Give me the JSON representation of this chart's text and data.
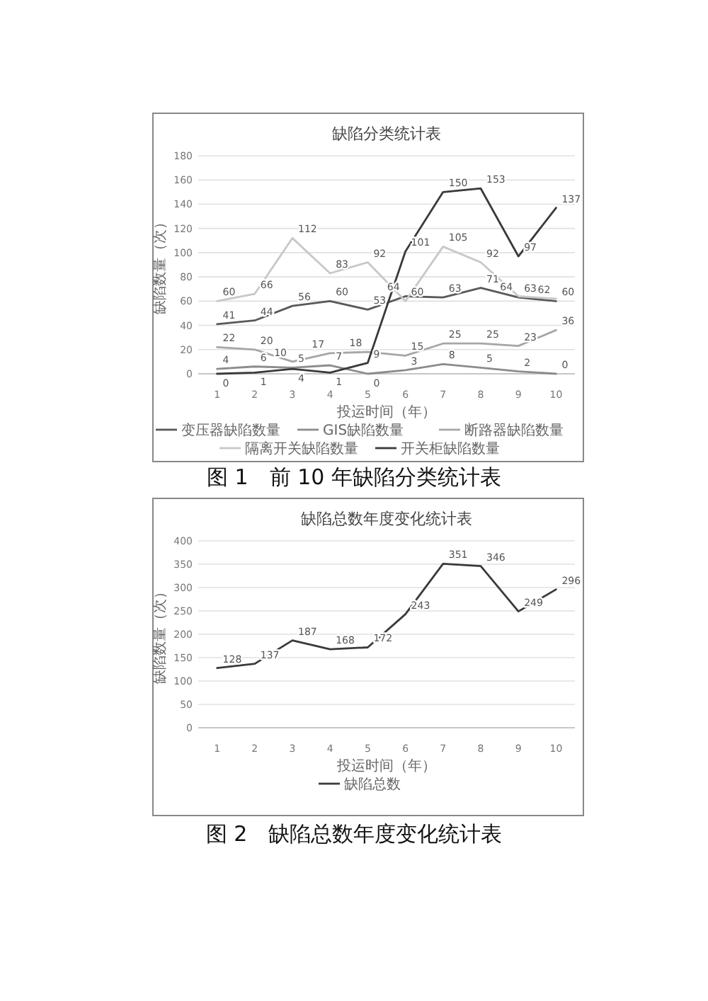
{
  "chart_data": [
    {
      "type": "line",
      "title": "缺陷分类统计表",
      "xlabel": "投运时间（年）",
      "ylabel": "缺陷数量（次）",
      "categories": [
        "1",
        "2",
        "3",
        "4",
        "5",
        "6",
        "7",
        "8",
        "9",
        "10"
      ],
      "series": [
        {
          "name": "变压器缺陷数量",
          "color": "#595959",
          "values": [
            41,
            44,
            56,
            60,
            53,
            64,
            63,
            71,
            63,
            60
          ]
        },
        {
          "name": "GIS缺陷数量",
          "color": "#8c8c8c",
          "values": [
            4,
            6,
            5,
            7,
            0,
            3,
            8,
            5,
            2,
            0
          ]
        },
        {
          "name": "断路器缺陷数量",
          "color": "#a6a6a6",
          "values": [
            22,
            20,
            10,
            17,
            18,
            15,
            25,
            25,
            23,
            36
          ]
        },
        {
          "name": "隔离开关缺陷数量",
          "color": "#c8c8c8",
          "values": [
            60,
            66,
            112,
            83,
            92,
            60,
            105,
            92,
            64,
            62
          ]
        },
        {
          "name": "开关柜缺陷数量",
          "color": "#3a3a3a",
          "values": [
            0,
            1,
            4,
            1,
            9,
            101,
            150,
            153,
            97,
            137
          ]
        }
      ],
      "ylim": [
        0,
        180
      ],
      "yticks": [
        0,
        20,
        40,
        60,
        80,
        100,
        120,
        140,
        160,
        180
      ],
      "grid": "y",
      "legend": "bottom",
      "data_labels": true,
      "marker": "none",
      "line_style": "solid",
      "annotations": [
        "图 1　前 10 年缺陷分类统计表"
      ]
    },
    {
      "type": "line",
      "title": "缺陷总数年度变化统计表",
      "xlabel": "投运时间（年）",
      "ylabel": "缺陷数量（次）",
      "categories": [
        "1",
        "2",
        "3",
        "4",
        "5",
        "6",
        "7",
        "8",
        "9",
        "10"
      ],
      "series": [
        {
          "name": "缺陷总数",
          "color": "#3a3a3a",
          "values": [
            128,
            137,
            187,
            168,
            172,
            243,
            351,
            346,
            249,
            296
          ]
        }
      ],
      "ylim": [
        0,
        400
      ],
      "yticks": [
        0,
        50,
        100,
        150,
        200,
        250,
        300,
        350,
        400
      ],
      "grid": "y",
      "legend": "bottom",
      "data_labels": true,
      "marker": "none",
      "line_style": "solid",
      "annotations": [
        "图 2　缺陷总数年度变化统计表"
      ]
    }
  ]
}
